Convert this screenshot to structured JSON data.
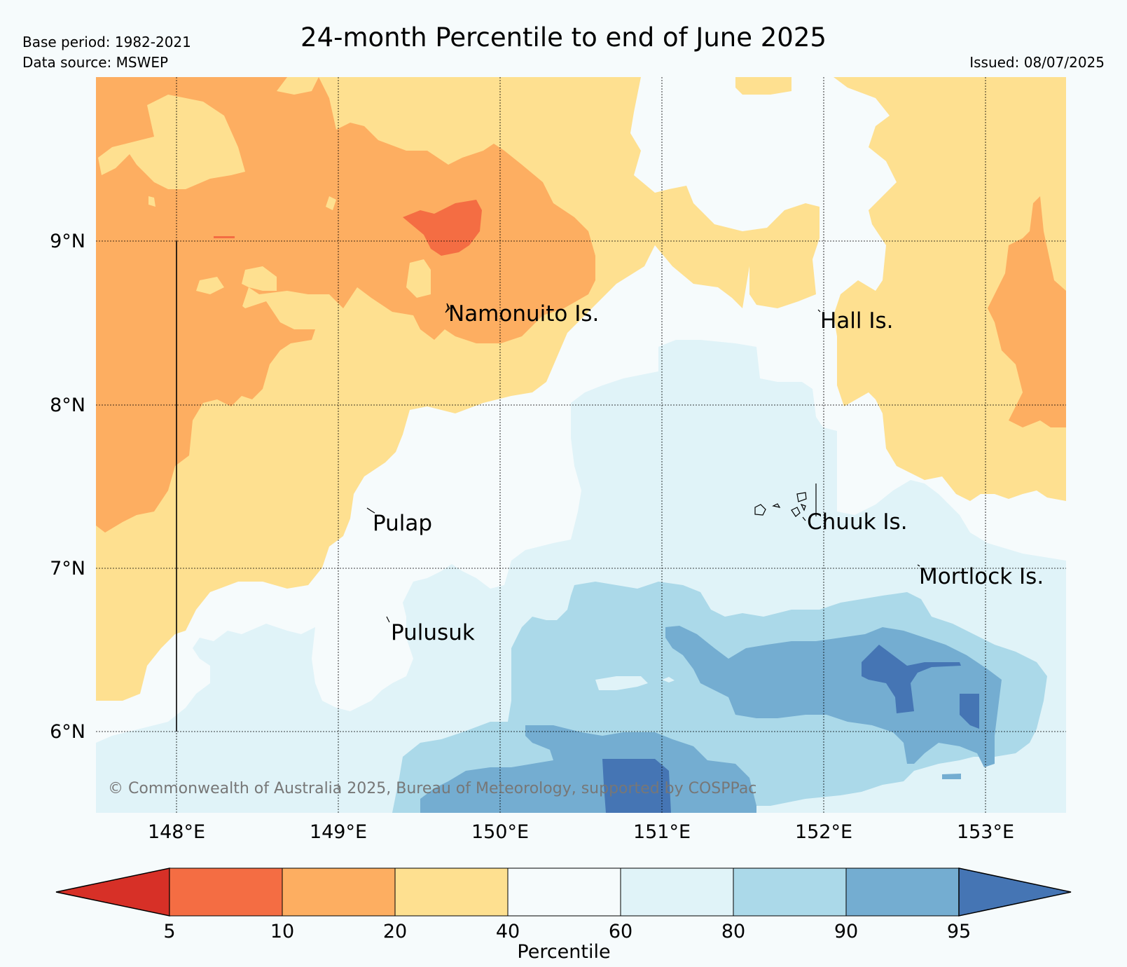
{
  "header": {
    "title": "24-month Percentile to end of June 2025",
    "base_period": "Base period: 1982-2021",
    "data_source": "Data source: MSWEP",
    "issued": "Issued: 08/07/2025"
  },
  "map": {
    "lat_labels": [
      "9°N",
      "8°N",
      "7°N",
      "6°N"
    ],
    "lon_labels": [
      "148°E",
      "149°E",
      "150°E",
      "151°E",
      "152°E",
      "153°E"
    ],
    "place_labels": {
      "namonuito": "Namonuito Is.",
      "hall": "Hall Is.",
      "pulap": "Pulap",
      "chuuk": "Chuuk Is.",
      "mortlock": "Mortlock Is.",
      "pulusuk": "Pulusuk"
    },
    "copyright": "© Commonwealth of Australia 2025, Bureau of Meteorology, supported by COSPPac"
  },
  "legend": {
    "title": "Percentile",
    "ticks": [
      "5",
      "10",
      "20",
      "40",
      "60",
      "80",
      "90",
      "95"
    ],
    "colors": {
      "below_5": "#d73027",
      "p5_10": "#f46d43",
      "p10_20": "#fdae61",
      "p20_40": "#fee090",
      "p40_60": "#f6fbfc",
      "p60_80": "#e0f3f8",
      "p80_90": "#abd9e9",
      "p90_95": "#74add1",
      "above_95": "#4575b4"
    }
  }
}
